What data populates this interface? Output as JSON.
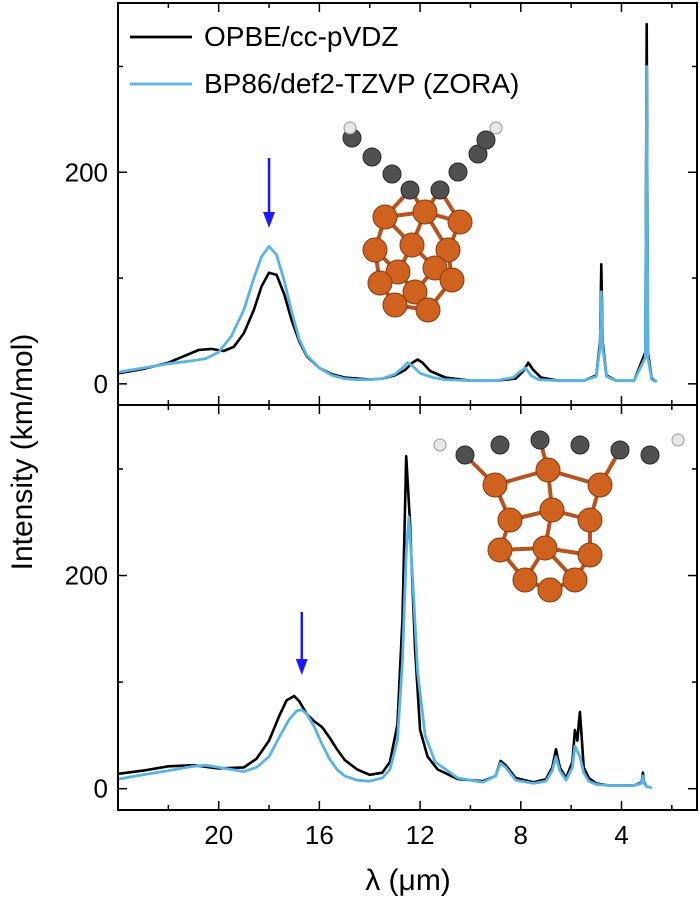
{
  "figure": {
    "ylabel": "Intensity (km/mol)",
    "xlabel": "λ (μm)"
  },
  "chart_data": [
    {
      "type": "line",
      "panel": "top",
      "xlim": [
        24,
        1
      ],
      "ylim": [
        -20,
        360
      ],
      "xticks": [
        20,
        16,
        12,
        8,
        4
      ],
      "yticks": [
        0,
        200
      ],
      "grid": false,
      "legend": "top-left",
      "annotation": "blue arrow at 18.0 μm",
      "series": [
        {
          "name": "OPBE/cc-pVDZ",
          "color": "#000000",
          "x": [
            24.0,
            23.0,
            22.0,
            21.3,
            20.8,
            20.3,
            19.8,
            19.4,
            19.0,
            18.6,
            18.3,
            18.0,
            17.7,
            17.4,
            17.1,
            16.8,
            16.5,
            16.0,
            15.5,
            15.0,
            14.5,
            14.0,
            13.5,
            13.0,
            12.6,
            12.3,
            12.1,
            11.9,
            11.6,
            11.0,
            10.0,
            9.0,
            8.2,
            7.9,
            7.7,
            7.5,
            7.2,
            6.5,
            5.5,
            5.0,
            4.85,
            4.8,
            4.75,
            4.6,
            4.2,
            3.5,
            3.05,
            3.0,
            2.95,
            2.8,
            2.6
          ],
          "y": [
            10,
            14,
            20,
            27,
            32,
            33,
            31,
            35,
            48,
            70,
            92,
            105,
            103,
            85,
            60,
            40,
            26,
            15,
            9,
            6,
            5,
            4,
            5,
            8,
            13,
            20,
            23,
            20,
            12,
            6,
            3,
            3,
            5,
            12,
            20,
            13,
            6,
            3,
            3,
            8,
            40,
            113,
            40,
            8,
            3,
            3,
            30,
            340,
            30,
            5,
            2
          ]
        },
        {
          "name": "BP86/def2-TZVP (ZORA)",
          "color": "#59b4e6",
          "x": [
            24.0,
            23.0,
            22.0,
            21.0,
            20.5,
            20.0,
            19.5,
            19.0,
            18.6,
            18.3,
            18.0,
            17.7,
            17.4,
            17.1,
            16.8,
            16.5,
            16.0,
            15.5,
            15.0,
            14.5,
            14.0,
            13.5,
            13.0,
            12.7,
            12.5,
            12.3,
            12.0,
            11.5,
            11.0,
            10.0,
            9.0,
            8.3,
            8.0,
            7.8,
            7.6,
            7.3,
            6.5,
            5.5,
            5.0,
            4.85,
            4.8,
            4.75,
            4.6,
            4.2,
            3.5,
            3.05,
            3.0,
            2.95,
            2.8,
            2.6
          ],
          "y": [
            11,
            15,
            19,
            22,
            24,
            30,
            45,
            70,
            100,
            120,
            130,
            122,
            98,
            68,
            42,
            27,
            15,
            8,
            5,
            4,
            4,
            5,
            9,
            15,
            20,
            17,
            10,
            6,
            4,
            3,
            3,
            6,
            12,
            15,
            8,
            4,
            3,
            3,
            7,
            35,
            87,
            35,
            7,
            3,
            3,
            25,
            300,
            25,
            4,
            2
          ]
        }
      ]
    },
    {
      "type": "line",
      "panel": "bottom",
      "xlim": [
        24,
        1
      ],
      "ylim": [
        -20,
        360
      ],
      "xticks": [
        20,
        16,
        12,
        8,
        4
      ],
      "yticks": [
        0,
        200
      ],
      "grid": false,
      "annotation": "blue arrow at 16.7 μm",
      "series": [
        {
          "name": "OPBE/cc-pVDZ",
          "color": "#000000",
          "x": [
            24.0,
            23.0,
            22.0,
            21.0,
            20.0,
            19.0,
            18.5,
            18.0,
            17.6,
            17.3,
            17.0,
            16.8,
            16.5,
            16.2,
            15.9,
            15.6,
            15.3,
            15.0,
            14.5,
            14.0,
            13.5,
            13.2,
            12.9,
            12.7,
            12.55,
            12.4,
            12.2,
            12.0,
            11.7,
            11.3,
            10.5,
            9.5,
            9.0,
            8.8,
            8.6,
            8.2,
            7.5,
            7.0,
            6.75,
            6.6,
            6.45,
            6.2,
            5.95,
            5.85,
            5.75,
            5.7,
            5.65,
            5.6,
            5.5,
            5.3,
            5.0,
            4.5,
            3.5,
            3.2,
            3.15,
            3.1,
            3.0,
            2.8
          ],
          "y": [
            14,
            17,
            21,
            22,
            19,
            20,
            28,
            45,
            68,
            83,
            87,
            82,
            70,
            63,
            58,
            48,
            37,
            27,
            18,
            13,
            15,
            25,
            60,
            160,
            312,
            250,
            130,
            55,
            30,
            18,
            9,
            7,
            12,
            26,
            22,
            10,
            6,
            9,
            20,
            37,
            20,
            10,
            25,
            55,
            45,
            60,
            72,
            55,
            20,
            10,
            5,
            3,
            3,
            6,
            15,
            6,
            2,
            1
          ]
        },
        {
          "name": "BP86/def2-TZVP (ZORA)",
          "color": "#59b4e6",
          "x": [
            24.0,
            23.0,
            22.0,
            21.0,
            20.5,
            20.0,
            19.0,
            18.5,
            18.0,
            17.6,
            17.2,
            16.9,
            16.7,
            16.5,
            16.2,
            15.9,
            15.6,
            15.3,
            15.0,
            14.5,
            14.0,
            13.5,
            13.2,
            12.9,
            12.7,
            12.55,
            12.45,
            12.3,
            12.1,
            11.8,
            11.4,
            10.5,
            9.5,
            9.0,
            8.8,
            8.6,
            8.2,
            7.5,
            7.0,
            6.75,
            6.6,
            6.45,
            6.2,
            5.95,
            5.85,
            5.75,
            5.65,
            5.5,
            5.3,
            5.0,
            4.5,
            3.5,
            3.2,
            3.15,
            3.1,
            3.0,
            2.8
          ],
          "y": [
            9,
            13,
            17,
            21,
            22,
            20,
            16,
            20,
            30,
            48,
            65,
            73,
            74,
            70,
            58,
            42,
            28,
            18,
            12,
            8,
            7,
            10,
            18,
            45,
            120,
            220,
            255,
            200,
            110,
            50,
            25,
            10,
            6,
            12,
            24,
            20,
            8,
            5,
            7,
            17,
            30,
            17,
            8,
            20,
            40,
            35,
            30,
            15,
            7,
            4,
            3,
            3,
            5,
            12,
            5,
            2,
            1
          ]
        }
      ]
    }
  ]
}
